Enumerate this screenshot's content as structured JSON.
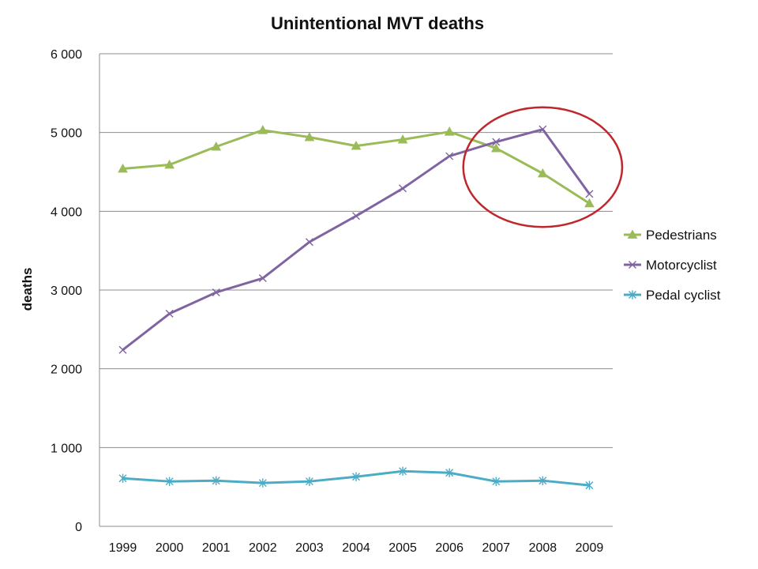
{
  "chart_data": {
    "type": "line",
    "title": "Unintentional MVT deaths",
    "xlabel": "",
    "ylabel": "deaths",
    "categories": [
      "1999",
      "2000",
      "2001",
      "2002",
      "2003",
      "2004",
      "2005",
      "2006",
      "2007",
      "2008",
      "2009"
    ],
    "ylim": [
      0,
      6000
    ],
    "yticks": [
      0,
      1000,
      2000,
      3000,
      4000,
      5000,
      6000
    ],
    "ytick_labels": [
      "0",
      "1 000",
      "2 000",
      "3 000",
      "4 000",
      "5 000",
      "6 000"
    ],
    "grid": true,
    "legend_position": "right",
    "series": [
      {
        "name": "Pedestrians",
        "color": "#9bbb59",
        "marker": "triangle",
        "values": [
          4540,
          4590,
          4820,
          5030,
          4940,
          4830,
          4910,
          5010,
          4800,
          4480,
          4100
        ]
      },
      {
        "name": "Motorcyclist",
        "color": "#8064a2",
        "marker": "x",
        "values": [
          2240,
          2700,
          2970,
          3150,
          3610,
          3940,
          4290,
          4700,
          4880,
          5040,
          4220
        ]
      },
      {
        "name": "Pedal cyclist",
        "color": "#4bacc6",
        "marker": "asterisk",
        "values": [
          610,
          570,
          580,
          550,
          570,
          630,
          700,
          680,
          570,
          580,
          520
        ]
      }
    ],
    "annotations": [
      {
        "type": "ellipse",
        "color": "#c0272d",
        "x_from": "2006.5",
        "x_to": "2009.5",
        "y_from": 3800,
        "y_to": 5320
      }
    ]
  }
}
